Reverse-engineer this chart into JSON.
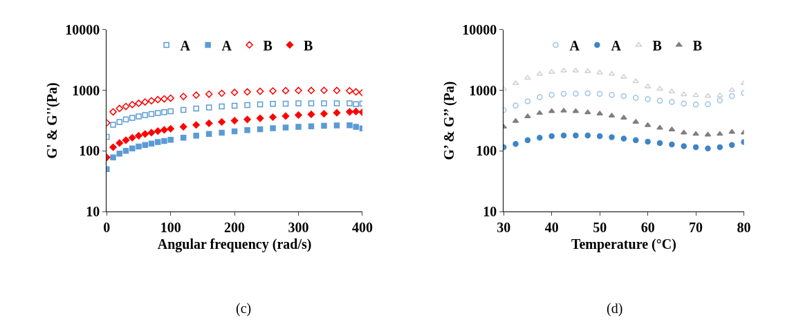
{
  "chart_data": [
    {
      "type": "scatter",
      "xlabel": "Angular frequency (rad/s)",
      "ylabel": "G' & G''(Pa)",
      "annotations": [
        "(c)"
      ],
      "log": "y",
      "legend": "top",
      "xlim": [
        0,
        400
      ],
      "xticks": [
        0,
        100,
        200,
        300,
        400
      ],
      "ylim": [
        10,
        10000
      ],
      "yticks": [
        10,
        100,
        1000,
        10000
      ],
      "x": [
        0,
        10,
        20,
        30,
        40,
        50,
        60,
        70,
        80,
        90,
        100,
        120,
        140,
        160,
        180,
        200,
        220,
        240,
        260,
        280,
        300,
        320,
        340,
        360,
        380,
        390,
        400
      ],
      "series": [
        {
          "name": "A",
          "color": "#5b9bd5",
          "marker": "square-open",
          "values": [
            170,
            270,
            300,
            330,
            350,
            370,
            390,
            405,
            420,
            435,
            450,
            475,
            500,
            520,
            540,
            555,
            570,
            585,
            595,
            600,
            610,
            610,
            610,
            610,
            610,
            590,
            600
          ]
        },
        {
          "name": "A",
          "color": "#5b9bd5",
          "marker": "square",
          "values": [
            50,
            78,
            90,
            100,
            110,
            118,
            125,
            132,
            140,
            146,
            152,
            165,
            178,
            190,
            200,
            210,
            220,
            228,
            236,
            243,
            250,
            255,
            260,
            263,
            265,
            250,
            235
          ]
        },
        {
          "name": "B",
          "color": "#ff0000",
          "marker": "diamond-open",
          "values": [
            290,
            440,
            500,
            540,
            580,
            610,
            640,
            670,
            700,
            720,
            740,
            790,
            830,
            860,
            890,
            920,
            940,
            960,
            975,
            985,
            990,
            990,
            995,
            990,
            980,
            940,
            910
          ]
        },
        {
          "name": "B",
          "color": "#ff0000",
          "marker": "diamond",
          "values": [
            78,
            115,
            135,
            150,
            165,
            178,
            190,
            200,
            212,
            222,
            232,
            250,
            268,
            285,
            300,
            315,
            330,
            345,
            360,
            375,
            390,
            400,
            410,
            425,
            440,
            445,
            435
          ]
        }
      ]
    },
    {
      "type": "scatter",
      "xlabel": "Temperature (°C)",
      "ylabel": "G’ & G’’ (Pa)",
      "annotations": [
        "(d)"
      ],
      "log": "y",
      "legend": "top",
      "xlim": [
        30,
        80
      ],
      "xticks": [
        30,
        40,
        50,
        60,
        70,
        80
      ],
      "ylim": [
        10,
        10000
      ],
      "yticks": [
        10,
        100,
        1000,
        10000
      ],
      "x": [
        30,
        32.5,
        35,
        37.5,
        40,
        42.5,
        45,
        47.5,
        50,
        52.5,
        55,
        57.5,
        60,
        62.5,
        65,
        67.5,
        70,
        72.5,
        75,
        77.5,
        80
      ],
      "series": [
        {
          "name": "A",
          "color": "#9dc3e6",
          "marker": "circle-open",
          "values": [
            470,
            560,
            660,
            770,
            840,
            870,
            880,
            890,
            870,
            840,
            800,
            750,
            710,
            670,
            640,
            600,
            580,
            590,
            680,
            800,
            900
          ]
        },
        {
          "name": "A",
          "color": "#3f84c8",
          "marker": "circle",
          "values": [
            115,
            130,
            150,
            165,
            175,
            180,
            180,
            180,
            175,
            168,
            160,
            150,
            142,
            135,
            128,
            120,
            115,
            110,
            115,
            125,
            140
          ]
        },
        {
          "name": "B",
          "color": "#d0d0d0",
          "marker": "triangle-up-open",
          "values": [
            1050,
            1300,
            1600,
            1850,
            2000,
            2100,
            2100,
            2050,
            1950,
            1850,
            1650,
            1400,
            1150,
            1050,
            950,
            850,
            820,
            800,
            820,
            1000,
            1300
          ]
        },
        {
          "name": "B",
          "color": "#7f7f7f",
          "marker": "triangle-up",
          "values": [
            250,
            310,
            370,
            420,
            450,
            460,
            450,
            430,
            410,
            380,
            350,
            300,
            265,
            240,
            225,
            200,
            190,
            185,
            190,
            205,
            200
          ]
        }
      ]
    }
  ]
}
